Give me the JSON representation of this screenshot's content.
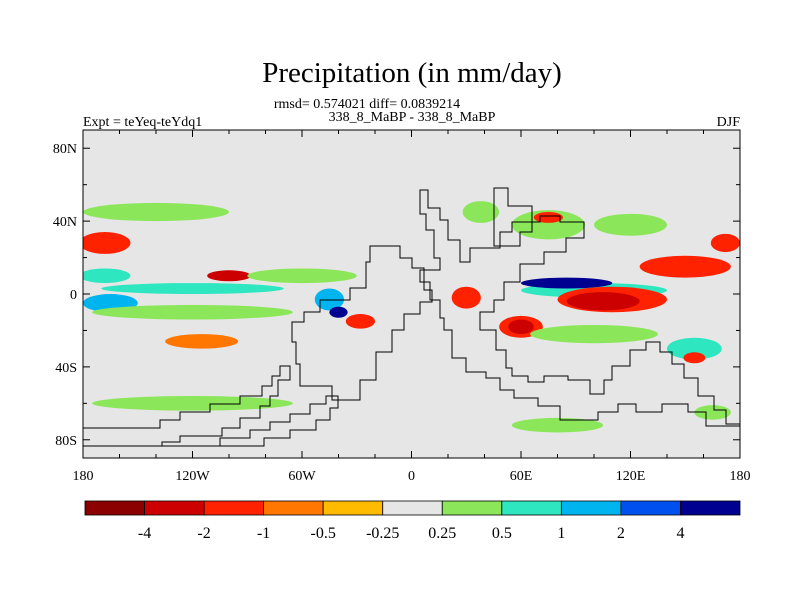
{
  "chart_data": {
    "type": "heatmap",
    "title": "Precipitation (in mm/day)",
    "stats_line": "rmsd= 0.574021 diff= 0.0839214",
    "comparison": "338_8_MaBP - 338_8_MaBP",
    "left_label": "Expt = teYeq-teYdq1",
    "right_label": "DJF",
    "xlim": [
      -180,
      180
    ],
    "ylim": [
      -90,
      90
    ],
    "x_ticks": [
      {
        "value": -180,
        "label": "180"
      },
      {
        "value": -120,
        "label": "120W"
      },
      {
        "value": -60,
        "label": "60W"
      },
      {
        "value": 0,
        "label": "0"
      },
      {
        "value": 60,
        "label": "60E"
      },
      {
        "value": 120,
        "label": "120E"
      },
      {
        "value": 180,
        "label": "180"
      }
    ],
    "y_ticks": [
      {
        "value": 80,
        "label": "80N"
      },
      {
        "value": 40,
        "label": "40N"
      },
      {
        "value": 0,
        "label": "0"
      },
      {
        "value": -40,
        "label": "40S"
      },
      {
        "value": -80,
        "label": "80S"
      }
    ],
    "colorbar": {
      "colors": [
        "#8b0000",
        "#cc0000",
        "#ff2200",
        "#ff7700",
        "#ffbb00",
        "#e6e6e6",
        "#8ce65a",
        "#2ee6c0",
        "#00b4f0",
        "#0050f0",
        "#000090"
      ],
      "labels": [
        "-4",
        "-2",
        "-1",
        "-0.5",
        "-0.25",
        "0.25",
        "0.5",
        "1",
        "2",
        "4"
      ]
    },
    "background_color": "#e6e6e6",
    "anomaly_blobs": [
      {
        "lon": -168,
        "lat": 28,
        "rlon": 14,
        "rlat": 6,
        "level": -1
      },
      {
        "lon": -168,
        "lat": 10,
        "rlon": 14,
        "rlat": 4,
        "level": 1
      },
      {
        "lon": -165,
        "lat": -5,
        "rlon": 15,
        "rlat": 5,
        "level": 2
      },
      {
        "lon": -120,
        "lat": 3,
        "rlon": 50,
        "rlat": 3,
        "level": 1
      },
      {
        "lon": -100,
        "lat": 10,
        "rlon": 12,
        "rlat": 3,
        "level": -2
      },
      {
        "lon": -120,
        "lat": -10,
        "rlon": 55,
        "rlat": 4,
        "level": 0.5
      },
      {
        "lon": -115,
        "lat": -26,
        "rlon": 20,
        "rlat": 4,
        "level": -0.5
      },
      {
        "lon": -140,
        "lat": 45,
        "rlon": 40,
        "rlat": 5,
        "level": 0.5
      },
      {
        "lon": -60,
        "lat": 10,
        "rlon": 30,
        "rlat": 4,
        "level": 0.5
      },
      {
        "lon": -45,
        "lat": -3,
        "rlon": 8,
        "rlat": 6,
        "level": 2
      },
      {
        "lon": -40,
        "lat": -10,
        "rlon": 5,
        "rlat": 3,
        "level": 4
      },
      {
        "lon": -28,
        "lat": -15,
        "rlon": 8,
        "rlat": 4,
        "level": -1
      },
      {
        "lon": 30,
        "lat": -2,
        "rlon": 8,
        "rlat": 6,
        "level": -1
      },
      {
        "lon": 38,
        "lat": 45,
        "rlon": 10,
        "rlat": 6,
        "level": 0.5
      },
      {
        "lon": 75,
        "lat": 38,
        "rlon": 20,
        "rlat": 8,
        "level": 0.5
      },
      {
        "lon": 75,
        "lat": 42,
        "rlon": 8,
        "rlat": 3,
        "level": -1
      },
      {
        "lon": 120,
        "lat": 38,
        "rlon": 20,
        "rlat": 6,
        "level": 0.5
      },
      {
        "lon": 100,
        "lat": 2,
        "rlon": 40,
        "rlat": 4,
        "level": 1
      },
      {
        "lon": 85,
        "lat": 6,
        "rlon": 25,
        "rlat": 3,
        "level": 4
      },
      {
        "lon": 150,
        "lat": 15,
        "rlon": 25,
        "rlat": 6,
        "level": -1
      },
      {
        "lon": 172,
        "lat": 28,
        "rlon": 8,
        "rlat": 5,
        "level": -1
      },
      {
        "lon": 110,
        "lat": -3,
        "rlon": 30,
        "rlat": 7,
        "level": -1
      },
      {
        "lon": 105,
        "lat": -4,
        "rlon": 20,
        "rlat": 5,
        "level": -2
      },
      {
        "lon": 60,
        "lat": -18,
        "rlon": 12,
        "rlat": 6,
        "level": -1
      },
      {
        "lon": 60,
        "lat": -18,
        "rlon": 7,
        "rlat": 4,
        "level": -2
      },
      {
        "lon": 100,
        "lat": -22,
        "rlon": 35,
        "rlat": 5,
        "level": 0.5
      },
      {
        "lon": 155,
        "lat": -30,
        "rlon": 15,
        "rlat": 6,
        "level": 1
      },
      {
        "lon": 155,
        "lat": -35,
        "rlon": 6,
        "rlat": 3,
        "level": -1
      },
      {
        "lon": -120,
        "lat": -60,
        "rlon": 55,
        "rlat": 4,
        "level": 0.5
      },
      {
        "lon": 80,
        "lat": -72,
        "rlon": 25,
        "rlat": 4,
        "level": 0.5
      },
      {
        "lon": 165,
        "lat": -65,
        "rlon": 10,
        "rlat": 4,
        "level": 0.5
      }
    ]
  }
}
